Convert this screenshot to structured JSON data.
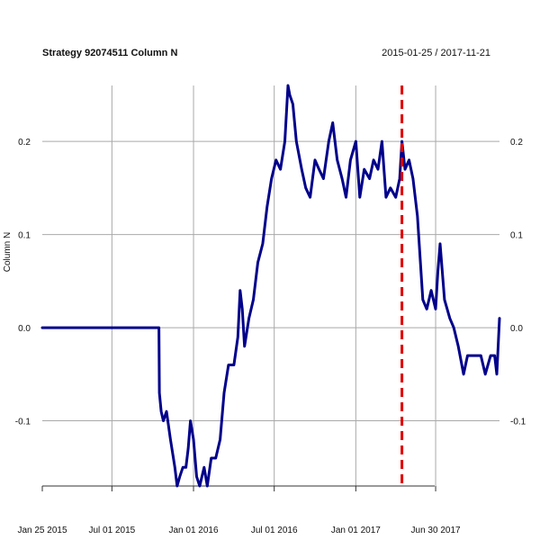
{
  "chart_data": {
    "type": "line",
    "title": "Strategy 92074511 Column N",
    "date_range": "2015-01-25 / 2017-11-21",
    "ylabel": "Column N",
    "ylim": [
      -0.17,
      0.26
    ],
    "y_ticks": [
      {
        "value": -0.1,
        "label": "-0.1"
      },
      {
        "value": 0.0,
        "label": "0.0"
      },
      {
        "value": 0.1,
        "label": "0.1"
      },
      {
        "value": 0.2,
        "label": "0.2"
      }
    ],
    "x_ticks": [
      {
        "date": "2015-01-25",
        "label": "Jan 25 2015"
      },
      {
        "date": "2015-07-01",
        "label": "Jul 01 2015"
      },
      {
        "date": "2016-01-01",
        "label": "Jan 01 2016"
      },
      {
        "date": "2016-07-01",
        "label": "Jul 01 2016"
      },
      {
        "date": "2017-01-01",
        "label": "Jan 01 2017"
      },
      {
        "date": "2017-06-30",
        "label": "Jun 30 2017"
      }
    ],
    "xlim": [
      "2015-01-25",
      "2017-11-21"
    ],
    "vline_date": "2017-04-15",
    "grid": true,
    "series": [
      {
        "color": "#00008B",
        "x": [
          "2015-01-25",
          "2015-04-15",
          "2015-10-15",
          "2015-10-16",
          "2015-10-20",
          "2015-10-25",
          "2015-11-01",
          "2015-11-10",
          "2015-11-20",
          "2015-11-25",
          "2015-12-01",
          "2015-12-08",
          "2015-12-15",
          "2015-12-20",
          "2015-12-25",
          "2016-01-01",
          "2016-01-08",
          "2016-01-15",
          "2016-01-25",
          "2016-02-01",
          "2016-02-10",
          "2016-02-20",
          "2016-03-01",
          "2016-03-10",
          "2016-03-20",
          "2016-04-01",
          "2016-04-10",
          "2016-04-15",
          "2016-04-20",
          "2016-04-25",
          "2016-05-05",
          "2016-05-15",
          "2016-05-25",
          "2016-06-05",
          "2016-06-15",
          "2016-06-25",
          "2016-07-05",
          "2016-07-15",
          "2016-07-25",
          "2016-08-01",
          "2016-08-05",
          "2016-08-12",
          "2016-08-20",
          "2016-09-01",
          "2016-09-10",
          "2016-09-20",
          "2016-10-01",
          "2016-10-10",
          "2016-10-20",
          "2016-11-01",
          "2016-11-10",
          "2016-11-20",
          "2016-12-01",
          "2016-12-10",
          "2016-12-20",
          "2017-01-01",
          "2017-01-10",
          "2017-01-20",
          "2017-02-01",
          "2017-02-10",
          "2017-02-20",
          "2017-03-01",
          "2017-03-10",
          "2017-03-20",
          "2017-04-01",
          "2017-04-10",
          "2017-04-15",
          "2017-04-22",
          "2017-05-01",
          "2017-05-10",
          "2017-05-20",
          "2017-06-01",
          "2017-06-10",
          "2017-06-20",
          "2017-06-30",
          "2017-07-05",
          "2017-07-10",
          "2017-07-20",
          "2017-08-01",
          "2017-08-10",
          "2017-08-20",
          "2017-09-01",
          "2017-09-10",
          "2017-09-20",
          "2017-10-01",
          "2017-10-10",
          "2017-10-20",
          "2017-11-01",
          "2017-11-10",
          "2017-11-15",
          "2017-11-21"
        ],
        "y": [
          0.0,
          0.0,
          0.0,
          -0.07,
          -0.09,
          -0.1,
          -0.09,
          -0.12,
          -0.15,
          -0.17,
          -0.16,
          -0.15,
          -0.15,
          -0.13,
          -0.1,
          -0.12,
          -0.16,
          -0.17,
          -0.15,
          -0.17,
          -0.14,
          -0.14,
          -0.12,
          -0.07,
          -0.04,
          -0.04,
          -0.01,
          0.04,
          0.02,
          -0.02,
          0.01,
          0.03,
          0.07,
          0.09,
          0.13,
          0.16,
          0.18,
          0.17,
          0.2,
          0.26,
          0.25,
          0.24,
          0.2,
          0.17,
          0.15,
          0.14,
          0.18,
          0.17,
          0.16,
          0.2,
          0.22,
          0.18,
          0.16,
          0.14,
          0.18,
          0.2,
          0.14,
          0.17,
          0.16,
          0.18,
          0.17,
          0.2,
          0.14,
          0.15,
          0.14,
          0.16,
          0.2,
          0.17,
          0.18,
          0.16,
          0.12,
          0.03,
          0.02,
          0.04,
          0.02,
          0.06,
          0.09,
          0.03,
          0.01,
          0.0,
          -0.02,
          -0.05,
          -0.03,
          -0.03,
          -0.03,
          -0.03,
          -0.05,
          -0.03,
          -0.03,
          -0.05,
          0.01
        ]
      }
    ]
  }
}
